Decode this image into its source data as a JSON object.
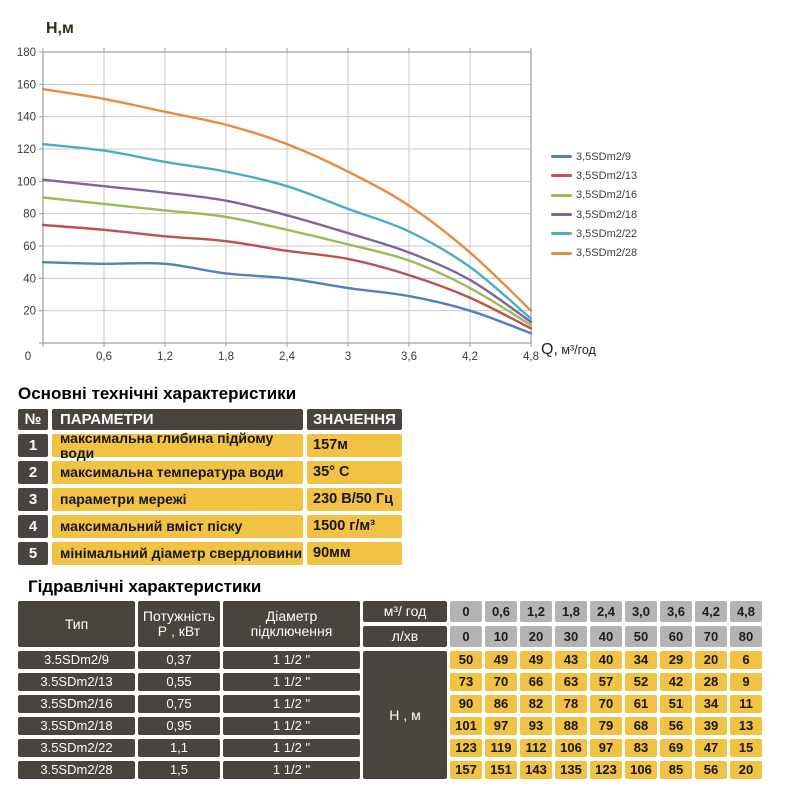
{
  "chart_data": {
    "type": "line",
    "title": "",
    "ylabel": "Н,м",
    "xlabel": "Q, м³/год",
    "xlabel_q": "Q,",
    "xlabel_unit": " м³/год",
    "x": [
      0,
      0.6,
      1.2,
      1.8,
      2.4,
      3,
      3.6,
      4.2,
      4.8
    ],
    "x_tick_labels": [
      "0",
      "0,6",
      "1,2",
      "1,8",
      "2,4",
      "3",
      "3,6",
      "4,2",
      "4,8"
    ],
    "y_ticks": [
      20,
      40,
      60,
      80,
      100,
      120,
      140,
      160,
      180
    ],
    "xlim": [
      0,
      4.8
    ],
    "ylim": [
      0,
      180
    ],
    "grid": true,
    "legend_position": "right",
    "series": [
      {
        "name": "3,5SDm2/9",
        "color": "#4F81BD",
        "values": [
          50,
          49,
          49,
          43,
          40,
          34,
          29,
          20,
          6
        ]
      },
      {
        "name": "3,5SDm2/13",
        "color": "#C0504D",
        "values": [
          73,
          70,
          66,
          63,
          57,
          52,
          42,
          28,
          9
        ]
      },
      {
        "name": "3,5SDm2/16",
        "color": "#9BBB59",
        "values": [
          90,
          86,
          82,
          78,
          70,
          61,
          51,
          34,
          11
        ]
      },
      {
        "name": "3,5SDm2/18",
        "color": "#8064A2",
        "values": [
          101,
          97,
          93,
          88,
          79,
          68,
          56,
          39,
          13
        ]
      },
      {
        "name": "3,5SDm2/22",
        "color": "#4BACC6",
        "values": [
          123,
          119,
          112,
          106,
          97,
          83,
          69,
          47,
          15
        ]
      },
      {
        "name": "3,5SDm2/28",
        "color": "#E78C3E",
        "values": [
          157,
          151,
          143,
          135,
          123,
          106,
          85,
          56,
          20
        ]
      }
    ]
  },
  "tables": {
    "main": {
      "title": "Основні технічні характеристики",
      "headers": {
        "num": "№",
        "param": "ПАРАМЕТРИ",
        "value": "ЗНАЧЕННЯ"
      },
      "rows": [
        {
          "num": "1",
          "param": "максимальна глибина підйому води",
          "value": "157м"
        },
        {
          "num": "2",
          "param": "максимальна температура води",
          "value": "35° С"
        },
        {
          "num": "3",
          "param": "параметри мережі",
          "value": "230 В/50 Гц"
        },
        {
          "num": "4",
          "param": "максимальний вміст піску",
          "value": "1500 г/м³"
        },
        {
          "num": "5",
          "param": "мінімальний діаметр свердловини",
          "value": "90мм"
        }
      ]
    },
    "hydraulic": {
      "title": "Гідравлічні характеристики",
      "headers": {
        "type": "Тип",
        "power_l1": "Потужність",
        "power_l2": "Р , кВт",
        "diameter_l1": "Діаметр",
        "diameter_l2": "підключення",
        "flow_hour": "м³/ год",
        "flow_min": "л/хв",
        "head": "Н , м"
      },
      "flow_hour_values": [
        "0",
        "0,6",
        "1,2",
        "1,8",
        "2,4",
        "3,0",
        "3,6",
        "4,2",
        "4,8"
      ],
      "flow_min_values": [
        "0",
        "10",
        "20",
        "30",
        "40",
        "50",
        "60",
        "70",
        "80"
      ],
      "rows": [
        {
          "type": "3.5SDm2/9",
          "power": "0,37",
          "diameter": "1 1/2 \"",
          "heads": [
            "50",
            "49",
            "49",
            "43",
            "40",
            "34",
            "29",
            "20",
            "6"
          ]
        },
        {
          "type": "3.5SDm2/13",
          "power": "0,55",
          "diameter": "1 1/2 \"",
          "heads": [
            "73",
            "70",
            "66",
            "63",
            "57",
            "52",
            "42",
            "28",
            "9"
          ]
        },
        {
          "type": "3.5SDm2/16",
          "power": "0,75",
          "diameter": "1 1/2 \"",
          "heads": [
            "90",
            "86",
            "82",
            "78",
            "70",
            "61",
            "51",
            "34",
            "11"
          ]
        },
        {
          "type": "3.5SDm2/18",
          "power": "0,95",
          "diameter": "1 1/2 \"",
          "heads": [
            "101",
            "97",
            "93",
            "88",
            "79",
            "68",
            "56",
            "39",
            "13"
          ]
        },
        {
          "type": "3.5SDm2/22",
          "power": "1,1",
          "diameter": "1 1/2 \"",
          "heads": [
            "123",
            "119",
            "112",
            "106",
            "97",
            "83",
            "69",
            "47",
            "15"
          ]
        },
        {
          "type": "3.5SDm2/28",
          "power": "1,5",
          "diameter": "1 1/2 \"",
          "heads": [
            "157",
            "151",
            "143",
            "135",
            "123",
            "106",
            "85",
            "56",
            "20"
          ]
        }
      ]
    }
  }
}
